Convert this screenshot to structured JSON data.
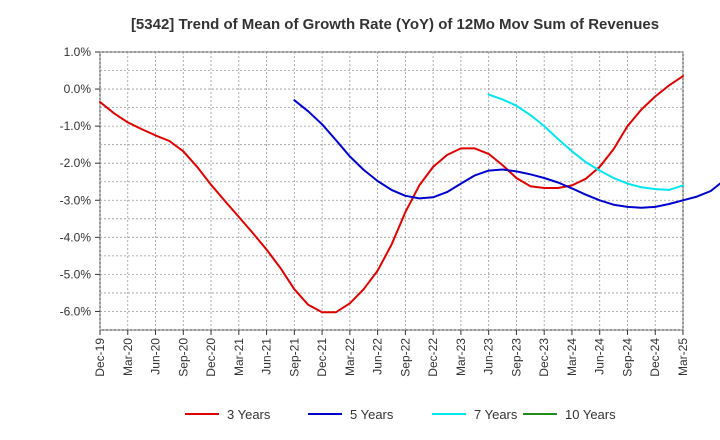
{
  "chart_data": {
    "type": "line",
    "title": "[5342]  Trend of Mean of Growth Rate (YoY) of 12Mo Mov Sum of Revenues",
    "xlabel": "",
    "ylabel": "",
    "x_tick_labels": [
      "Dec-19",
      "Mar-20",
      "Jun-20",
      "Sep-20",
      "Dec-20",
      "Mar-21",
      "Jun-21",
      "Sep-21",
      "Dec-21",
      "Mar-22",
      "Jun-22",
      "Sep-22",
      "Dec-22",
      "Mar-23",
      "Jun-23",
      "Sep-23",
      "Dec-23",
      "Mar-24",
      "Jun-24",
      "Sep-24",
      "Dec-24",
      "Mar-25"
    ],
    "y_tick_labels": [
      "1.0%",
      "0.0%",
      "-1.0%",
      "-2.0%",
      "-3.0%",
      "-4.0%",
      "-5.0%",
      "-6.0%"
    ],
    "y_tick_values": [
      1.0,
      0.0,
      -1.0,
      -2.0,
      -3.0,
      -4.0,
      -5.0,
      -6.0
    ],
    "ylim": [
      -6.5,
      1.0
    ],
    "x_range_quarters": [
      0,
      21
    ],
    "grid": true,
    "legend_position": "bottom",
    "series": [
      {
        "name": "3 Years",
        "color": "#dd0000",
        "start_index": 0,
        "values": [
          -0.35,
          -0.65,
          -0.9,
          -1.08,
          -1.25,
          -1.4,
          -1.68,
          -2.1,
          -2.58,
          -3.02,
          -3.45,
          -3.88,
          -4.33,
          -4.83,
          -5.4,
          -5.82,
          -6.02,
          -6.02,
          -5.78,
          -5.4,
          -4.9,
          -4.2,
          -3.32,
          -2.6,
          -2.1,
          -1.78,
          -1.6,
          -1.6,
          -1.75,
          -2.05,
          -2.4,
          -2.62,
          -2.67,
          -2.67,
          -2.6,
          -2.42,
          -2.1,
          -1.62,
          -1.0,
          -0.55,
          -0.2,
          0.1,
          0.35
        ]
      },
      {
        "name": "5 Years",
        "color": "#0000cc",
        "start_index": 14,
        "values": [
          -0.3,
          -0.6,
          -0.95,
          -1.38,
          -1.82,
          -2.18,
          -2.48,
          -2.72,
          -2.88,
          -2.95,
          -2.92,
          -2.78,
          -2.55,
          -2.33,
          -2.2,
          -2.17,
          -2.22,
          -2.3,
          -2.4,
          -2.52,
          -2.68,
          -2.85,
          -3.0,
          -3.12,
          -3.18,
          -3.2,
          -3.18,
          -3.1,
          -3.0,
          -2.9,
          -2.75,
          -2.45
        ]
      },
      {
        "name": "7 Years",
        "color": "#00e5ee",
        "start_index": 28,
        "values": [
          -0.15,
          -0.28,
          -0.45,
          -0.7,
          -1.0,
          -1.35,
          -1.68,
          -1.97,
          -2.2,
          -2.4,
          -2.55,
          -2.65,
          -2.7,
          -2.72,
          -2.6
        ]
      },
      {
        "name": "10 Years",
        "color": "#228b22",
        "start_index": 0,
        "values": []
      }
    ]
  }
}
